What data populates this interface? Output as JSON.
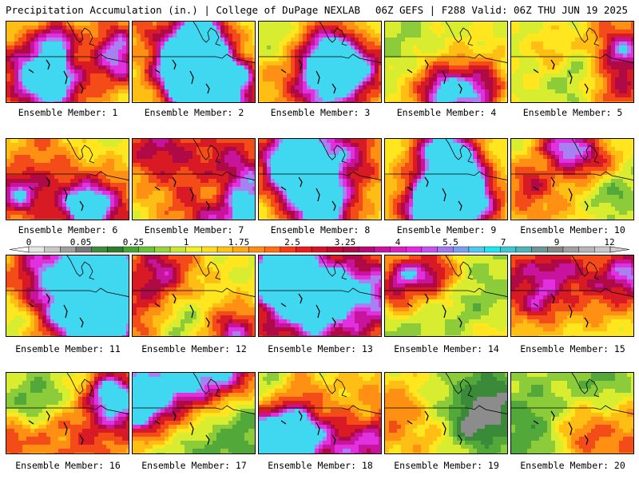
{
  "header": {
    "title": "Precipitation Accumulation (in.) | College of DuPage NEXLAB",
    "run_info": "06Z GEFS | F288 Valid: 06Z THU JUN 19 2025"
  },
  "panels": [
    {
      "label": "Ensemble Member: 1",
      "member": 1
    },
    {
      "label": "Ensemble Member: 2",
      "member": 2
    },
    {
      "label": "Ensemble Member: 3",
      "member": 3
    },
    {
      "label": "Ensemble Member: 4",
      "member": 4
    },
    {
      "label": "Ensemble Member: 5",
      "member": 5
    },
    {
      "label": "Ensemble Member: 6",
      "member": 6
    },
    {
      "label": "Ensemble Member: 7",
      "member": 7
    },
    {
      "label": "Ensemble Member: 8",
      "member": 8
    },
    {
      "label": "Ensemble Member: 9",
      "member": 9
    },
    {
      "label": "Ensemble Member: 10",
      "member": 10
    },
    {
      "label": "Ensemble Member: 11",
      "member": 11
    },
    {
      "label": "Ensemble Member: 12",
      "member": 12
    },
    {
      "label": "Ensemble Member: 13",
      "member": 13
    },
    {
      "label": "Ensemble Member: 14",
      "member": 14
    },
    {
      "label": "Ensemble Member: 15",
      "member": 15
    },
    {
      "label": "Ensemble Member: 16",
      "member": 16
    },
    {
      "label": "Ensemble Member: 17",
      "member": 17
    },
    {
      "label": "Ensemble Member: 18",
      "member": 18
    },
    {
      "label": "Ensemble Member: 19",
      "member": 19
    },
    {
      "label": "Ensemble Member: 20",
      "member": 20
    }
  ],
  "colorbar": {
    "tick_labels": [
      "0",
      "0.05",
      "0.25",
      "1",
      "1.75",
      "2.5",
      "3.25",
      "4",
      "5.5",
      "7",
      "9",
      "12"
    ],
    "colors": [
      "#e6e6e6",
      "#c8c8c8",
      "#a0a0a0",
      "#787878",
      "#3c8c3c",
      "#2e7d2e",
      "#46a532",
      "#6cbf3a",
      "#98d23c",
      "#c8e632",
      "#f0f028",
      "#ffdc1e",
      "#ffc314",
      "#ffaa14",
      "#ff8c14",
      "#ff6e14",
      "#f53c14",
      "#e61e1e",
      "#d21428",
      "#be0a32",
      "#aa0a46",
      "#b40a78",
      "#c814a0",
      "#dc1ebe",
      "#e628e6",
      "#c850f0",
      "#a078f0",
      "#78a0f0",
      "#50c8f0",
      "#1ee6f0",
      "#3cc8d2",
      "#50b4b4",
      "#6e9696",
      "#888888",
      "#a0a0a0",
      "#b4b4b4",
      "#c8c8c8"
    ],
    "below_range_color": "#ffffff",
    "above_range_color": "#d0d0d0"
  }
}
